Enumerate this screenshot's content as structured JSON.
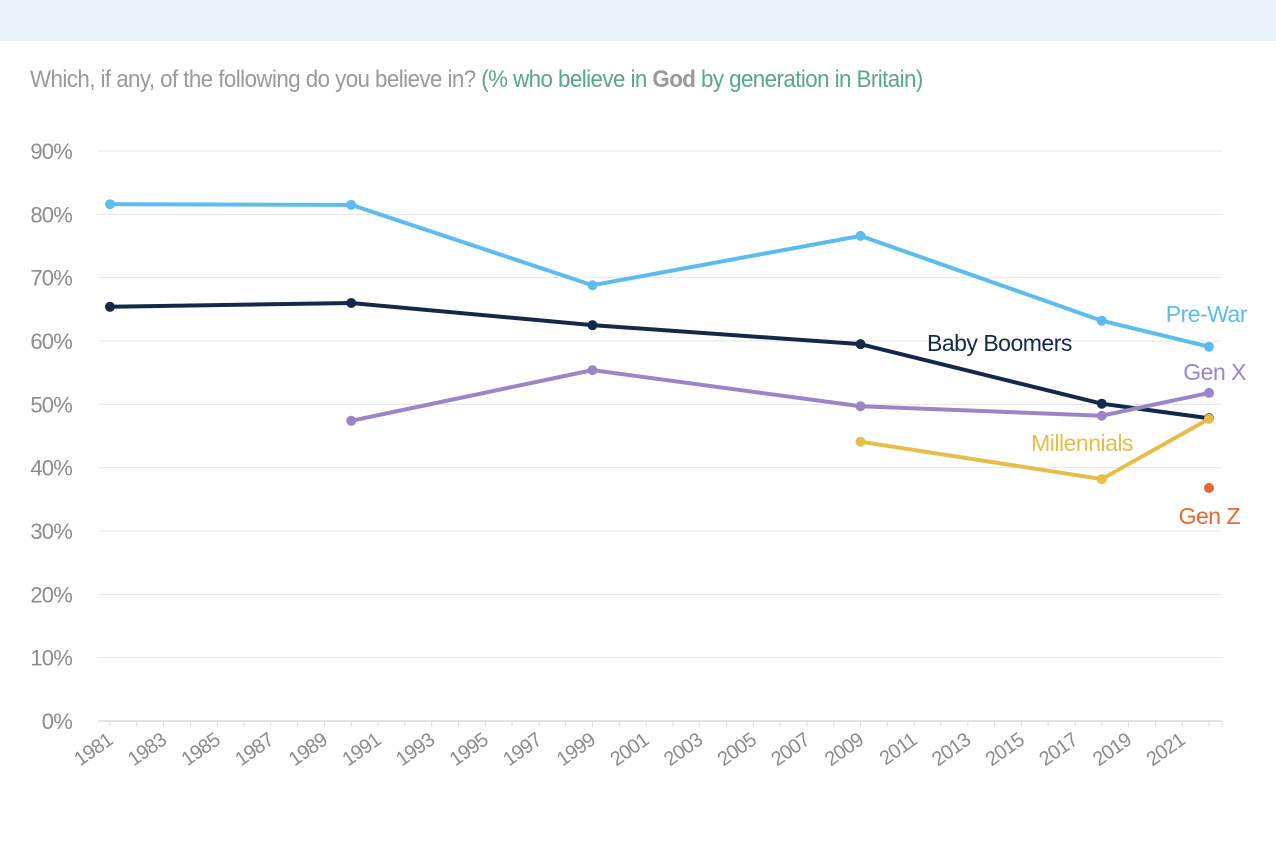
{
  "header_band": {
    "color": "#ebf2f9"
  },
  "title": {
    "question": "Which, if any, of the following do you believe in?",
    "subtitle_prefix": "(% who believe in ",
    "subtitle_keyword": "God",
    "subtitle_suffix": " by generation in Britain)"
  },
  "chart_data": {
    "type": "line",
    "title": "Which, if any, of the following do you believe in? (% who believe in God by generation in Britain)",
    "xlabel": "",
    "ylabel": "",
    "xlim": [
      1980.5,
      2022.5
    ],
    "ylim": [
      0,
      90
    ],
    "y_ticks": [
      0,
      10,
      20,
      30,
      40,
      50,
      60,
      70,
      80,
      90
    ],
    "y_tick_labels": [
      "0%",
      "10%",
      "20%",
      "30%",
      "40%",
      "50%",
      "60%",
      "70%",
      "80%",
      "90%"
    ],
    "x_tick_labels": [
      "1981",
      "1983",
      "1985",
      "1987",
      "1989",
      "1991",
      "1993",
      "1995",
      "1997",
      "1999",
      "2001",
      "2003",
      "2005",
      "2007",
      "2009",
      "2011",
      "2013",
      "2015",
      "2017",
      "2019",
      "2021"
    ],
    "grid": "horizontal",
    "legend": "inline-labels-right",
    "series": [
      {
        "name": "Pre-War",
        "color": "#5bbcf0",
        "x": [
          1981,
          1990,
          1999,
          2009,
          2018,
          2022
        ],
        "values": [
          81.6,
          81.5,
          68.8,
          76.6,
          63.2,
          59.1
        ]
      },
      {
        "name": "Baby Boomers",
        "color": "#14284a",
        "x": [
          1981,
          1990,
          1999,
          2009,
          2018,
          2022
        ],
        "values": [
          65.4,
          66.0,
          62.5,
          59.5,
          50.1,
          47.8
        ]
      },
      {
        "name": "Gen X",
        "color": "#9a85c9",
        "x": [
          1990,
          1999,
          2009,
          2018,
          2022
        ],
        "values": [
          47.4,
          55.4,
          49.7,
          48.2,
          51.8
        ]
      },
      {
        "name": "Millennials",
        "color": "#e8bd47",
        "x": [
          2009,
          2018,
          2022
        ],
        "values": [
          44.1,
          38.2,
          47.7
        ]
      },
      {
        "name": "Gen Z",
        "color": "#e8692f",
        "x": [
          2022
        ],
        "values": [
          36.8
        ]
      }
    ]
  }
}
